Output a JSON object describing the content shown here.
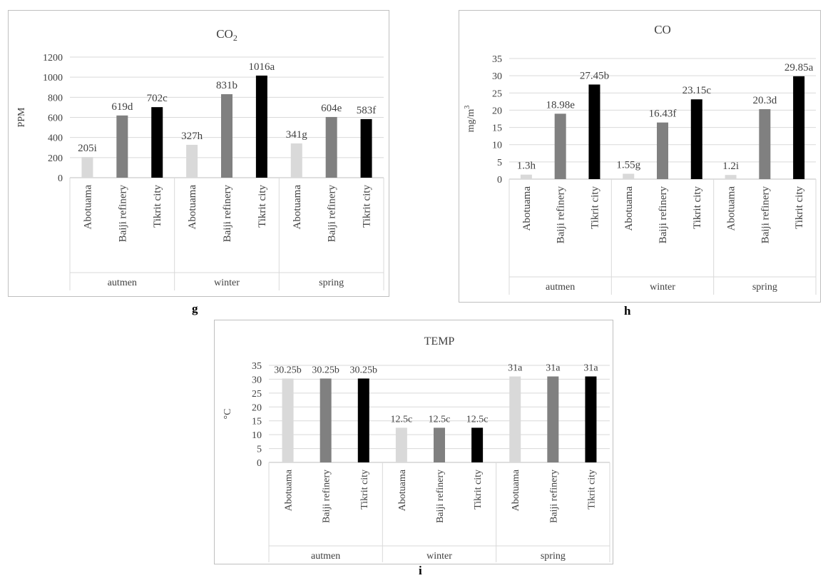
{
  "panel_labels": {
    "g": "g",
    "h": "h",
    "i": "i"
  },
  "chart_data": [
    {
      "type": "bar",
      "title": "CO",
      "title_subscript": "2",
      "ylabel": "PPM",
      "ylim": [
        0,
        1200
      ],
      "yticks": [
        0,
        200,
        400,
        600,
        800,
        1000,
        1200
      ],
      "grid": true,
      "groups": [
        "autmen",
        "winter",
        "spring"
      ],
      "categories": [
        "Abotuama",
        "Baiji refinery",
        "Tikrit city"
      ],
      "colors": [
        "#d9d9d9",
        "#808080",
        "#000000"
      ],
      "values": [
        [
          205,
          619,
          702
        ],
        [
          327,
          831,
          1016
        ],
        [
          341,
          604,
          583
        ]
      ],
      "labels": [
        [
          "205i",
          "619d",
          "702c"
        ],
        [
          "327h",
          "831b",
          "1016a"
        ],
        [
          "341g",
          "604e",
          "583f"
        ]
      ]
    },
    {
      "type": "bar",
      "title": "CO",
      "ylabel": "mg/m",
      "ylabel_superscript": "3",
      "ylim": [
        0,
        35
      ],
      "yticks": [
        0,
        5,
        10,
        15,
        20,
        25,
        30,
        35
      ],
      "grid": true,
      "groups": [
        "autmen",
        "winter",
        "spring"
      ],
      "categories": [
        "Abotuama",
        "Baiji refinery",
        "Tikrit city"
      ],
      "colors": [
        "#d9d9d9",
        "#808080",
        "#000000"
      ],
      "values": [
        [
          1.3,
          18.98,
          27.45
        ],
        [
          1.55,
          16.43,
          23.15
        ],
        [
          1.2,
          20.3,
          29.85
        ]
      ],
      "labels": [
        [
          "1.3h",
          "18.98e",
          "27.45b"
        ],
        [
          "1.55g",
          "16.43f",
          "23.15c"
        ],
        [
          "1.2i",
          "20.3d",
          "29.85a"
        ]
      ]
    },
    {
      "type": "bar",
      "title": "TEMP",
      "ylabel": "°C",
      "ylim": [
        0,
        35
      ],
      "yticks": [
        0,
        5,
        10,
        15,
        20,
        25,
        30,
        35
      ],
      "grid": true,
      "groups": [
        "autmen",
        "winter",
        "spring"
      ],
      "categories": [
        "Abotuama",
        "Baiji refinery",
        "Tikrit city"
      ],
      "colors": [
        "#d9d9d9",
        "#808080",
        "#000000"
      ],
      "values": [
        [
          30.25,
          30.25,
          30.25
        ],
        [
          12.5,
          12.5,
          12.5
        ],
        [
          31,
          31,
          31
        ]
      ],
      "labels": [
        [
          "30.25b",
          "30.25b",
          "30.25b"
        ],
        [
          "12.5c",
          "12.5c",
          "12.5c"
        ],
        [
          "31a",
          "31a",
          "31a"
        ]
      ]
    }
  ]
}
